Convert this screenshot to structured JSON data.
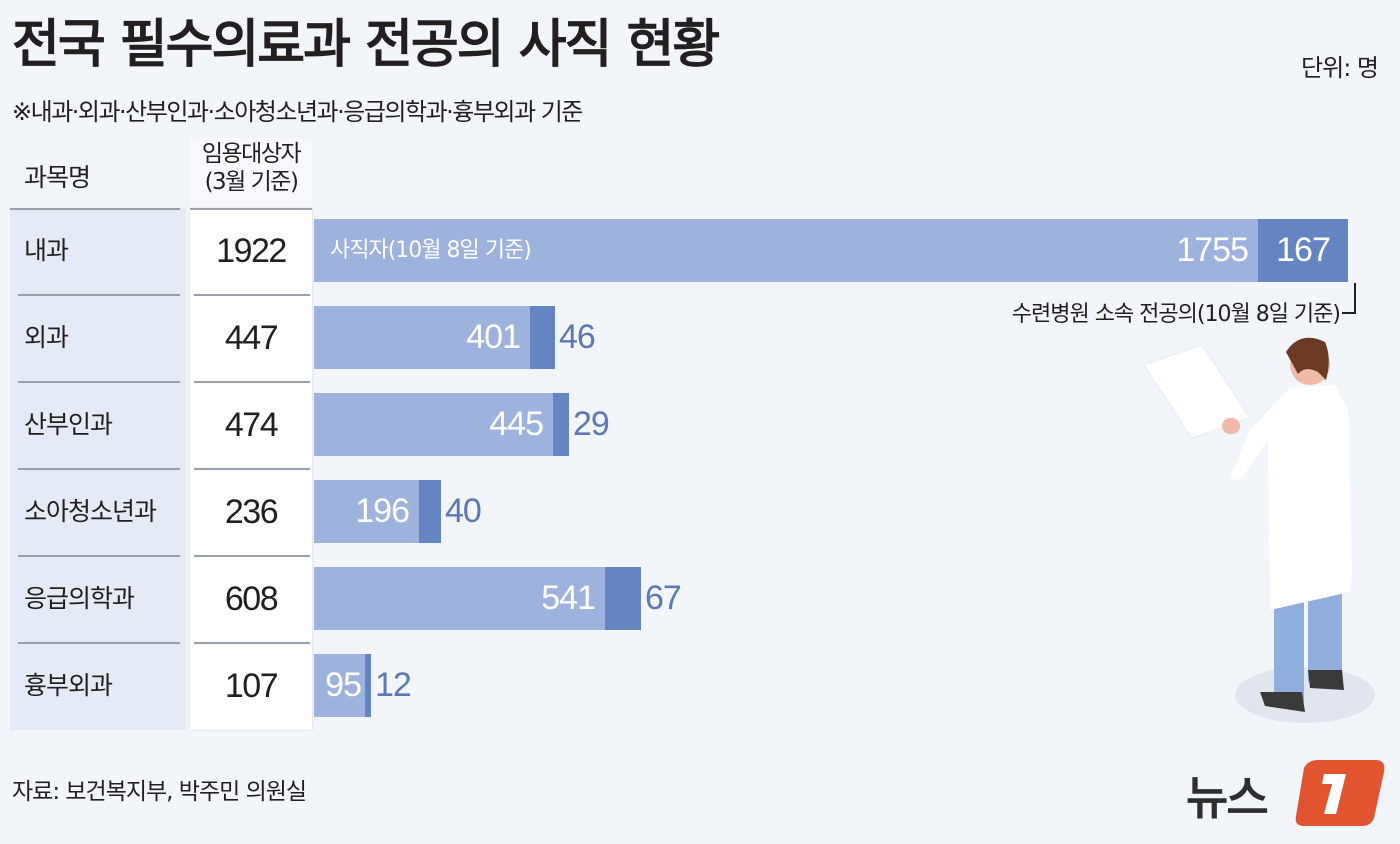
{
  "header": {
    "title": "전국 필수의료과 전공의 사직 현황",
    "subtitle": "※내과·외과·산부인과·소아청소년과·응급의학과·흉부외과 기준",
    "unit": "단위: 명"
  },
  "table": {
    "col_name_header": "과목명",
    "col_num_header_line1": "임용대상자",
    "col_num_header_line2": "(3월 기준)",
    "rows": [
      {
        "name": "내과",
        "total": "1922",
        "resigned": "1755",
        "current": "167"
      },
      {
        "name": "외과",
        "total": "447",
        "resigned": "401",
        "current": "46"
      },
      {
        "name": "산부인과",
        "total": "474",
        "resigned": "445",
        "current": "29"
      },
      {
        "name": "소아청소년과",
        "total": "236",
        "resigned": "196",
        "current": "40"
      },
      {
        "name": "응급의학과",
        "total": "608",
        "resigned": "541",
        "current": "67"
      },
      {
        "name": "흉부외과",
        "total": "107",
        "resigned": "95",
        "current": "12"
      }
    ]
  },
  "legend": {
    "resigned_label": "사직자(10월 8일 기준)",
    "current_label": "수련병원 소속 전공의(10월 8일 기준)"
  },
  "colors": {
    "resigned": "#9db2dc",
    "current": "#6584c2",
    "background": "#f2f5fa",
    "logo_accent": "#e2532f"
  },
  "footer": {
    "source": "자료: 보건복지부, 박주민 의원실",
    "logo_text": "뉴스",
    "logo_mark": "1"
  },
  "chart_data": {
    "type": "bar",
    "orientation": "horizontal",
    "stacked": true,
    "title": "전국 필수의료과 전공의 사직 현황",
    "subtitle": "※내과·외과·산부인과·소아청소년과·응급의학과·흉부외과 기준",
    "unit": "명",
    "categories": [
      "내과",
      "외과",
      "산부인과",
      "소아청소년과",
      "응급의학과",
      "흉부외과"
    ],
    "totals_label": "임용대상자(3월 기준)",
    "totals": [
      1922,
      447,
      474,
      236,
      608,
      107
    ],
    "series": [
      {
        "name": "사직자(10월 8일 기준)",
        "color": "#9db2dc",
        "values": [
          1755,
          401,
          445,
          196,
          541,
          95
        ]
      },
      {
        "name": "수련병원 소속 전공의(10월 8일 기준)",
        "color": "#6584c2",
        "values": [
          167,
          46,
          29,
          40,
          67,
          12
        ]
      }
    ],
    "xlabel": "",
    "ylabel": "과목명",
    "grid": false,
    "source": "자료: 보건복지부, 박주민 의원실"
  }
}
